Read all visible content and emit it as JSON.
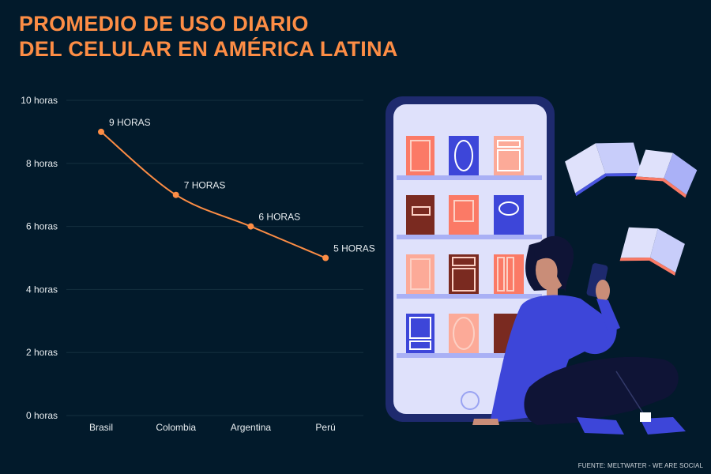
{
  "title_lines": [
    "PROMEDIO DE USO DIARIO",
    "DEL CELULAR EN AMÉRICA LATINA"
  ],
  "source": "FUENTE: MELTWATER - WE ARE SOCIAL",
  "colors": {
    "background": "#021a2b",
    "accent": "#fd8d45",
    "grid": "#14303f",
    "text": "#e8edf0"
  },
  "chart_data": {
    "type": "line",
    "categories": [
      "Brasil",
      "Colombia",
      "Argentina",
      "Perú"
    ],
    "series": [
      {
        "values": [
          9,
          7,
          6,
          5
        ]
      }
    ],
    "data_labels": [
      "9 HORAS",
      "7 HORAS",
      "6 HORAS",
      "5 HORAS"
    ],
    "ylim": [
      0,
      10
    ],
    "yticks": [
      0,
      2,
      4,
      6,
      8,
      10
    ],
    "ytick_labels": [
      "0 horas",
      "2 horas",
      "4 horas",
      "6 horas",
      "8 horas",
      "10 horas"
    ],
    "grid": true,
    "line_style": "smooth"
  },
  "illustration": "phone-bookshelf-woman-reading"
}
